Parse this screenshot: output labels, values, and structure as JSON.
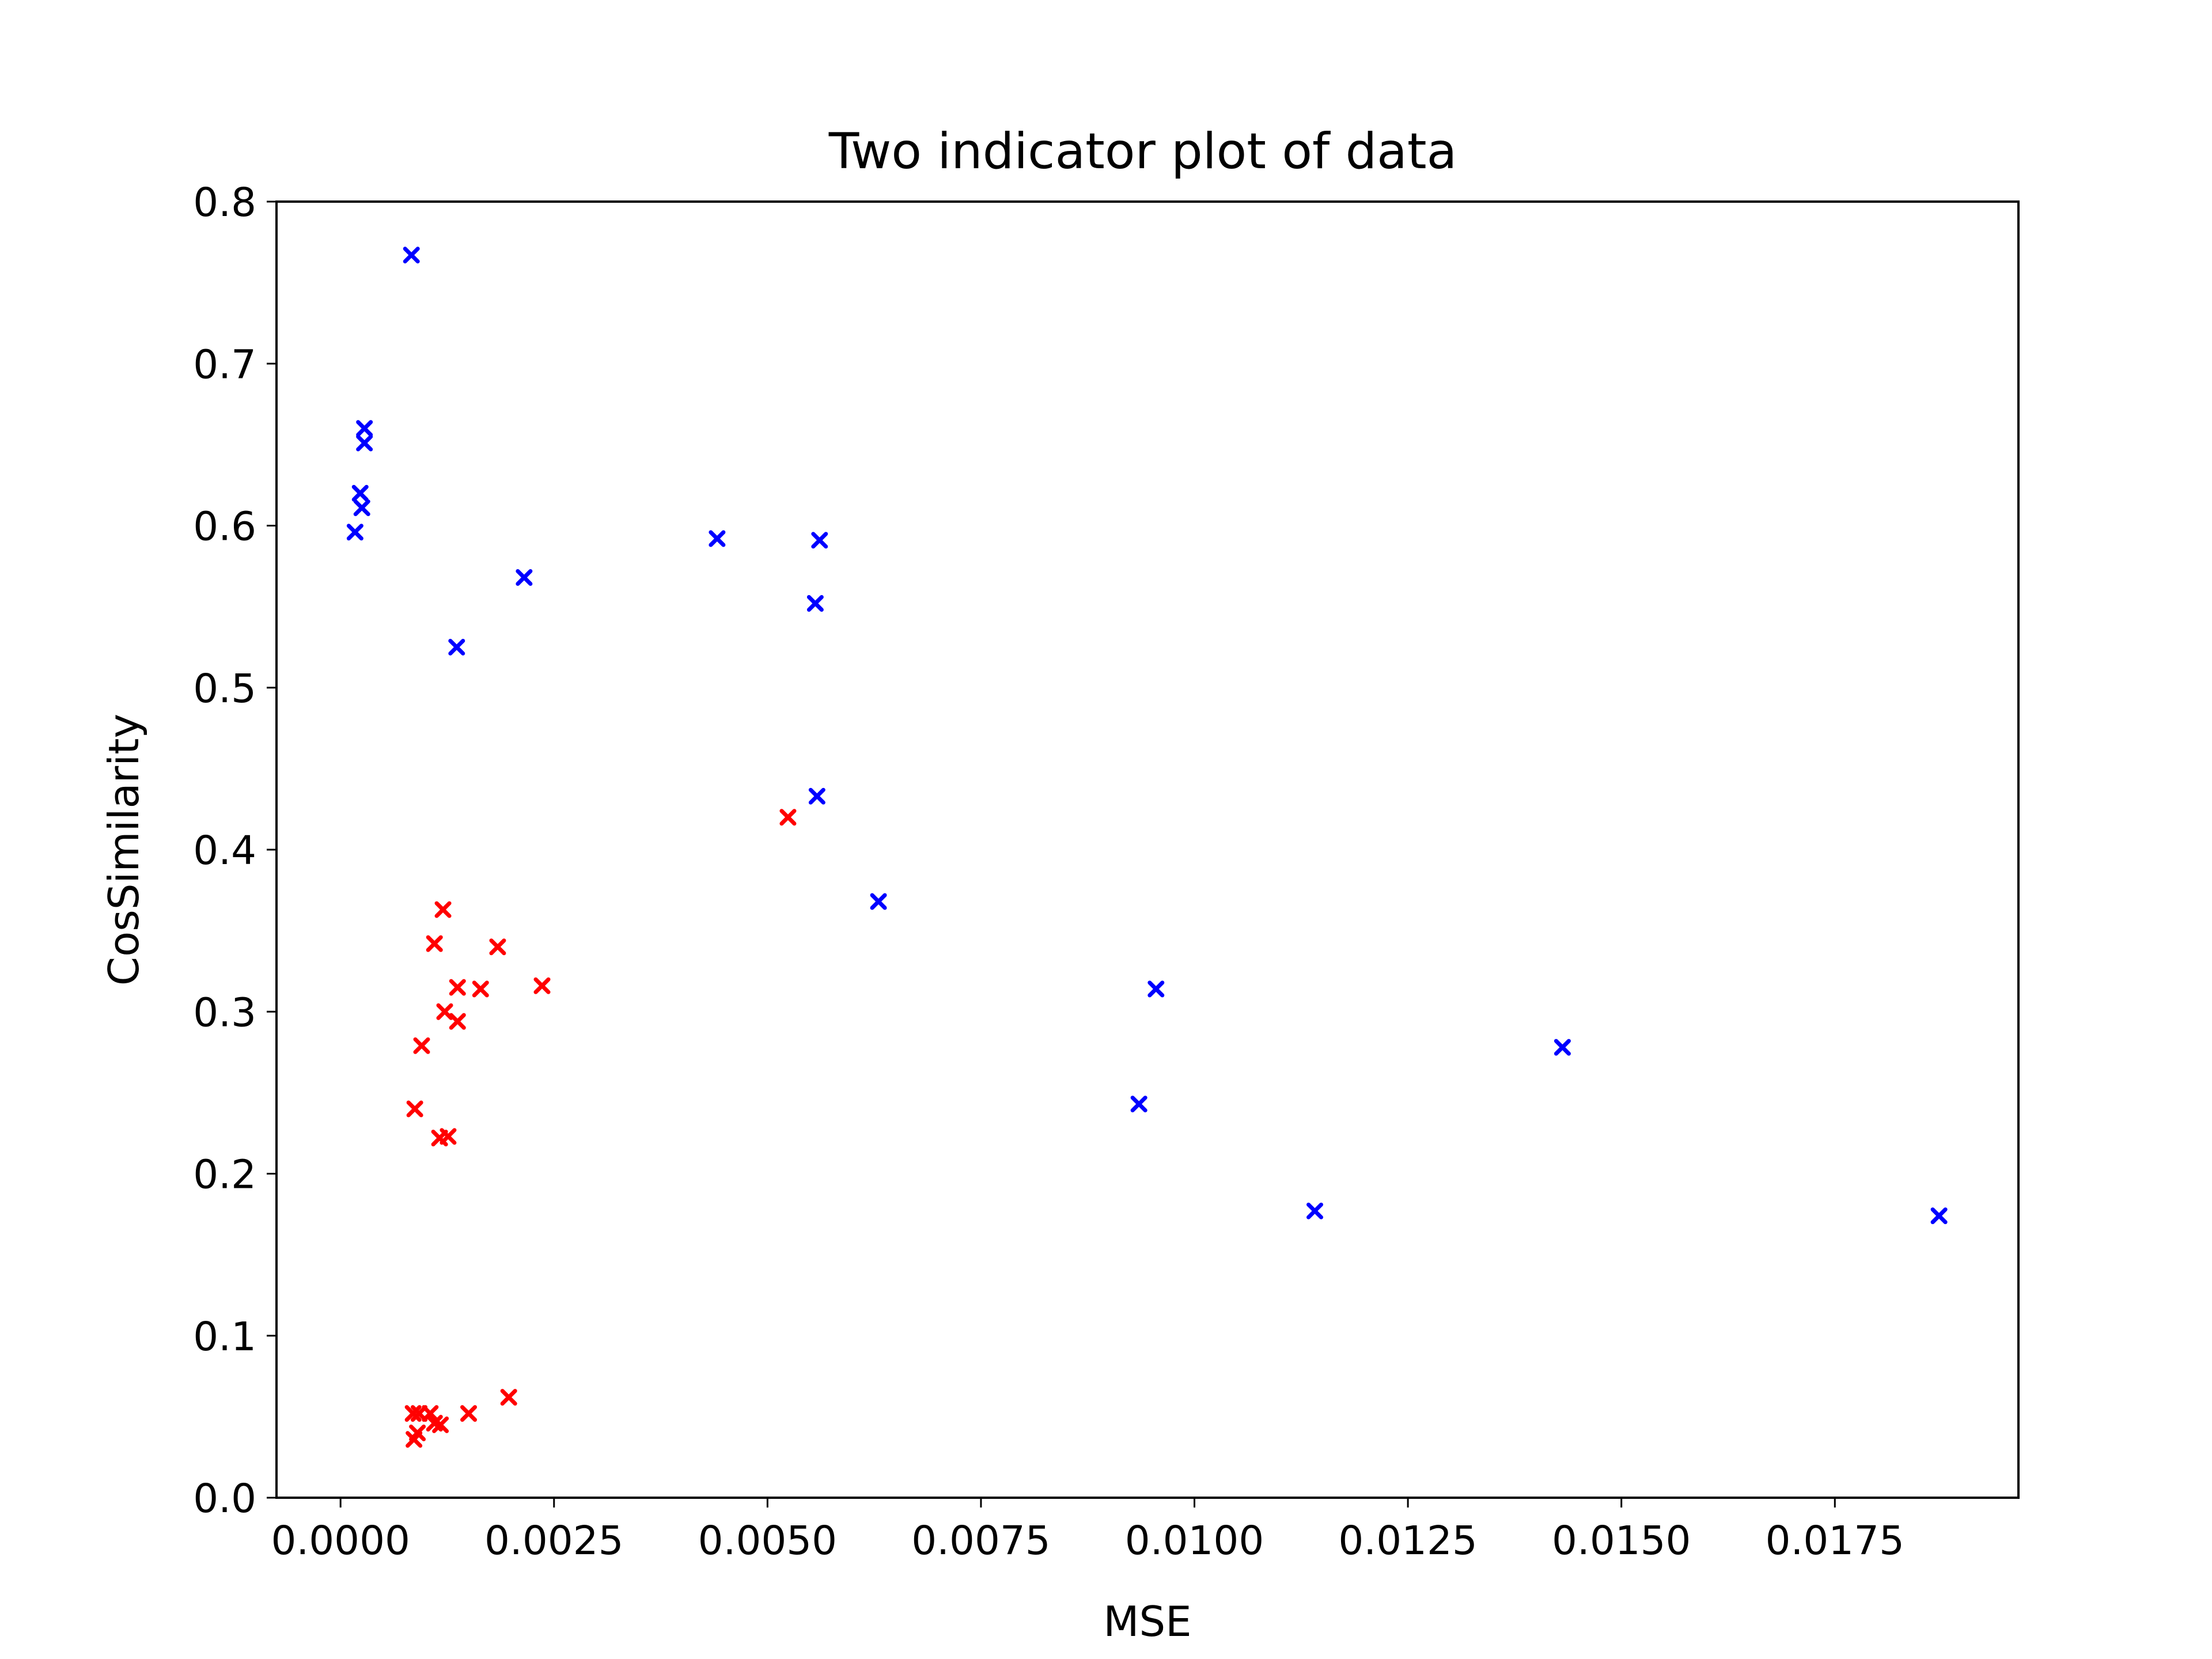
{
  "chart_data": {
    "type": "scatter",
    "title": "Two indicator plot of data",
    "xlabel": "MSE",
    "ylabel": "CosSimilarity",
    "xlim": [
      -0.00075,
      0.01965
    ],
    "ylim": [
      0.0,
      0.8
    ],
    "xticks": [
      0.0,
      0.0025,
      0.005,
      0.0075,
      0.01,
      0.0125,
      0.015,
      0.0175
    ],
    "xtick_labels": [
      "0.0000",
      "0.0025",
      "0.0050",
      "0.0075",
      "0.0100",
      "0.0125",
      "0.0150",
      "0.0175"
    ],
    "yticks": [
      0.0,
      0.1,
      0.2,
      0.3,
      0.4,
      0.5,
      0.6,
      0.7,
      0.8
    ],
    "ytick_labels": [
      "0.0",
      "0.1",
      "0.2",
      "0.3",
      "0.4",
      "0.5",
      "0.6",
      "0.7",
      "0.8"
    ],
    "marker": "x",
    "grid": false,
    "series": [
      {
        "color": "#0000ff",
        "points": [
          [
            0.00083,
            0.767
          ],
          [
            0.00028,
            0.66
          ],
          [
            0.00028,
            0.651
          ],
          [
            0.00023,
            0.62
          ],
          [
            0.00025,
            0.611
          ],
          [
            0.00017,
            0.596
          ],
          [
            0.00215,
            0.568
          ],
          [
            0.00136,
            0.525
          ],
          [
            0.00441,
            0.592
          ],
          [
            0.00561,
            0.591
          ],
          [
            0.00556,
            0.552
          ],
          [
            0.00558,
            0.433
          ],
          [
            0.0063,
            0.368
          ],
          [
            0.00955,
            0.314
          ],
          [
            0.00935,
            0.243
          ],
          [
            0.01431,
            0.278
          ],
          [
            0.01141,
            0.177
          ],
          [
            0.01872,
            0.174
          ]
        ]
      },
      {
        "color": "#ff0000",
        "points": [
          [
            0.00524,
            0.42
          ],
          [
            0.0012,
            0.363
          ],
          [
            0.0011,
            0.342
          ],
          [
            0.00184,
            0.34
          ],
          [
            0.00236,
            0.316
          ],
          [
            0.00137,
            0.315
          ],
          [
            0.00164,
            0.314
          ],
          [
            0.00122,
            0.3
          ],
          [
            0.00137,
            0.294
          ],
          [
            0.00095,
            0.279
          ],
          [
            0.00087,
            0.24
          ],
          [
            0.00116,
            0.222
          ],
          [
            0.00126,
            0.223
          ],
          [
            0.00197,
            0.062
          ],
          [
            0.0015,
            0.052
          ],
          [
            0.00085,
            0.052
          ],
          [
            0.00092,
            0.052
          ],
          [
            0.00105,
            0.052
          ],
          [
            0.0011,
            0.046
          ],
          [
            0.00117,
            0.045
          ],
          [
            0.0009,
            0.04
          ],
          [
            0.00086,
            0.036
          ]
        ]
      }
    ]
  }
}
